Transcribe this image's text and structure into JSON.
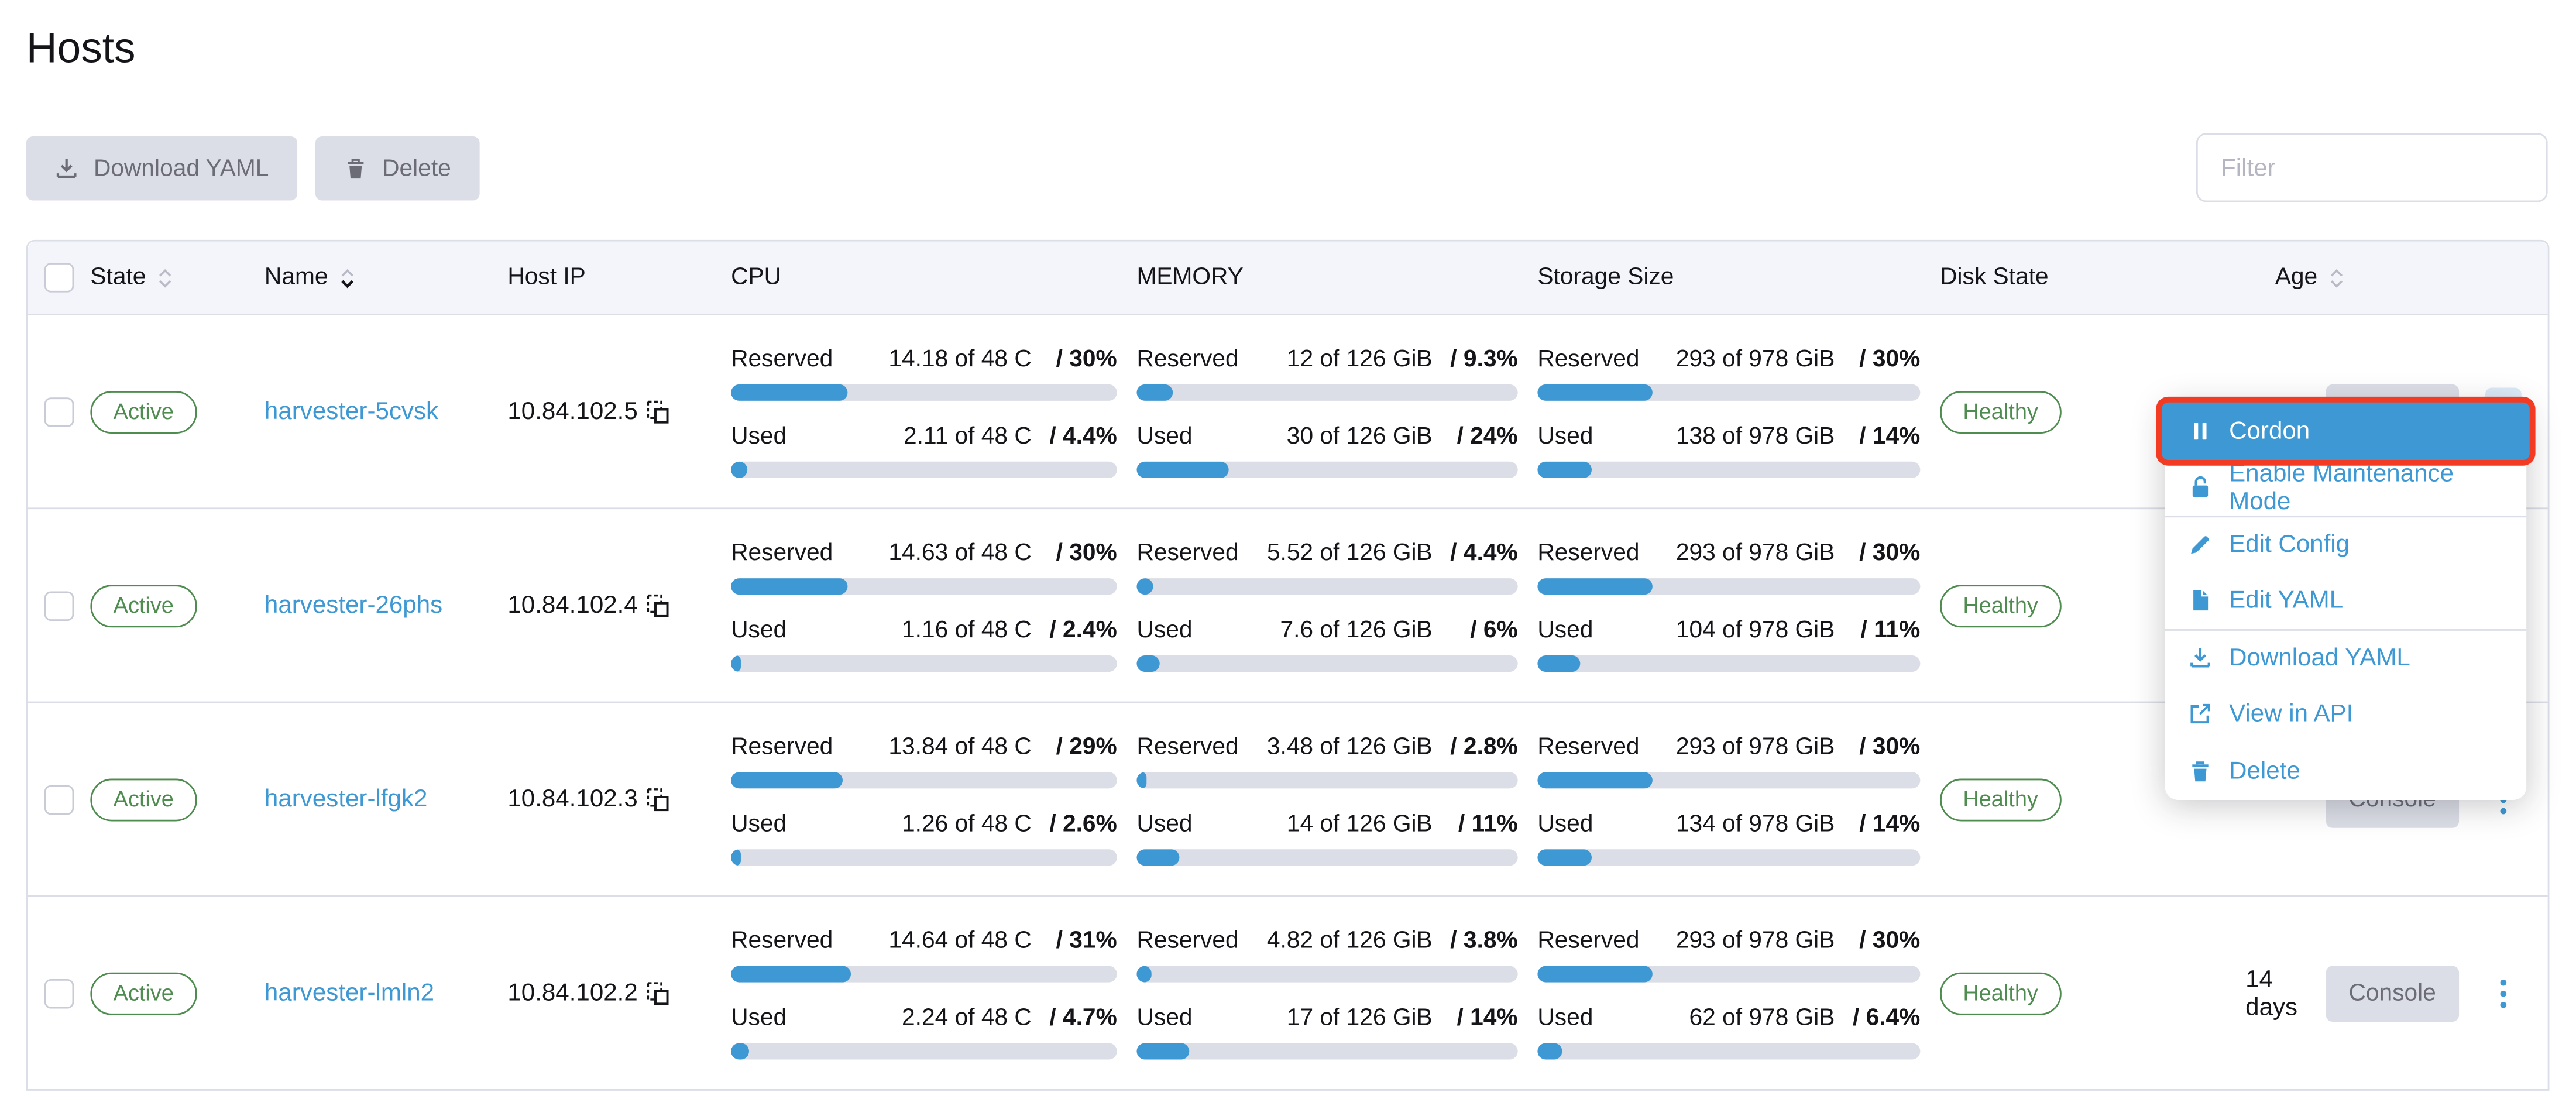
{
  "title": "Hosts",
  "colors": {
    "accent_blue": "#3d98d3",
    "success_green": "#4f8c4f",
    "highlight_outline_red": "#f23b22",
    "button_gray": "#dcdee7",
    "header_bg": "#f4f5fa"
  },
  "toolbar": {
    "download_yaml_label": "Download YAML",
    "delete_label": "Delete"
  },
  "filter": {
    "placeholder": "Filter"
  },
  "table": {
    "headers": {
      "state": "State",
      "name": "Name",
      "host_ip": "Host IP",
      "cpu": "CPU",
      "memory": "MEMORY",
      "storage": "Storage Size",
      "disk_state": "Disk State",
      "age": "Age"
    },
    "metric_labels": {
      "reserved": "Reserved",
      "used": "Used"
    },
    "rows": [
      {
        "state": "Active",
        "name": "harvester-5cvsk",
        "host_ip": "10.84.102.5",
        "cpu": {
          "reserved": {
            "value": "14.18 of 48 C",
            "percent_label": "/ 30%",
            "percent": 30
          },
          "used": {
            "value": "2.11 of 48 C",
            "percent_label": "/ 4.4%",
            "percent": 4.4
          }
        },
        "memory": {
          "reserved": {
            "value": "12 of 126 GiB",
            "percent_label": "/ 9.3%",
            "percent": 9.3
          },
          "used": {
            "value": "30 of 126 GiB",
            "percent_label": "/ 24%",
            "percent": 24
          }
        },
        "storage": {
          "reserved": {
            "value": "293 of 978 GiB",
            "percent_label": "/ 30%",
            "percent": 30
          },
          "used": {
            "value": "138 of 978 GiB",
            "percent_label": "/ 14%",
            "percent": 14
          }
        },
        "disk_state": "Healthy",
        "age": "",
        "console_label": "Console",
        "dots_active": true
      },
      {
        "state": "Active",
        "name": "harvester-26phs",
        "host_ip": "10.84.102.4",
        "cpu": {
          "reserved": {
            "value": "14.63 of 48 C",
            "percent_label": "/ 30%",
            "percent": 30
          },
          "used": {
            "value": "1.16 of 48 C",
            "percent_label": "/ 2.4%",
            "percent": 2.4
          }
        },
        "memory": {
          "reserved": {
            "value": "5.52 of 126 GiB",
            "percent_label": "/ 4.4%",
            "percent": 4.4
          },
          "used": {
            "value": "7.6 of 126 GiB",
            "percent_label": "/ 6%",
            "percent": 6
          }
        },
        "storage": {
          "reserved": {
            "value": "293 of 978 GiB",
            "percent_label": "/ 30%",
            "percent": 30
          },
          "used": {
            "value": "104 of 978 GiB",
            "percent_label": "/ 11%",
            "percent": 11
          }
        },
        "disk_state": "Healthy",
        "age": "",
        "console_label": "Console",
        "dots_active": false
      },
      {
        "state": "Active",
        "name": "harvester-lfgk2",
        "host_ip": "10.84.102.3",
        "cpu": {
          "reserved": {
            "value": "13.84 of 48 C",
            "percent_label": "/ 29%",
            "percent": 29
          },
          "used": {
            "value": "1.26 of 48 C",
            "percent_label": "/ 2.6%",
            "percent": 2.6
          }
        },
        "memory": {
          "reserved": {
            "value": "3.48 of 126 GiB",
            "percent_label": "/ 2.8%",
            "percent": 2.8
          },
          "used": {
            "value": "14 of 126 GiB",
            "percent_label": "/ 11%",
            "percent": 11
          }
        },
        "storage": {
          "reserved": {
            "value": "293 of 978 GiB",
            "percent_label": "/ 30%",
            "percent": 30
          },
          "used": {
            "value": "134 of 978 GiB",
            "percent_label": "/ 14%",
            "percent": 14
          }
        },
        "disk_state": "Healthy",
        "age": "",
        "console_label": "Console",
        "dots_active": false
      },
      {
        "state": "Active",
        "name": "harvester-lmln2",
        "host_ip": "10.84.102.2",
        "cpu": {
          "reserved": {
            "value": "14.64 of 48 C",
            "percent_label": "/ 31%",
            "percent": 31
          },
          "used": {
            "value": "2.24 of 48 C",
            "percent_label": "/ 4.7%",
            "percent": 4.7
          }
        },
        "memory": {
          "reserved": {
            "value": "4.82 of 126 GiB",
            "percent_label": "/ 3.8%",
            "percent": 3.8
          },
          "used": {
            "value": "17 of 126 GiB",
            "percent_label": "/ 14%",
            "percent": 14
          }
        },
        "storage": {
          "reserved": {
            "value": "293 of 978 GiB",
            "percent_label": "/ 30%",
            "percent": 30
          },
          "used": {
            "value": "62 of 978 GiB",
            "percent_label": "/ 6.4%",
            "percent": 6.4
          }
        },
        "disk_state": "Healthy",
        "age": "14 days",
        "console_label": "Console",
        "dots_active": false
      }
    ]
  },
  "context_menu": {
    "items": [
      {
        "label": "Cordon",
        "icon": "pause-icon",
        "highlighted": true,
        "divider_before": false
      },
      {
        "label": "Enable Maintenance Mode",
        "icon": "unlock-icon",
        "highlighted": false,
        "divider_before": false
      },
      {
        "label": "Edit Config",
        "icon": "pencil-icon",
        "highlighted": false,
        "divider_before": true
      },
      {
        "label": "Edit YAML",
        "icon": "file-icon",
        "highlighted": false,
        "divider_before": false
      },
      {
        "label": "Download YAML",
        "icon": "download-icon",
        "highlighted": false,
        "divider_before": true
      },
      {
        "label": "View in API",
        "icon": "external-link-icon",
        "highlighted": false,
        "divider_before": false
      },
      {
        "label": "Delete",
        "icon": "trash-icon",
        "highlighted": false,
        "divider_before": false
      }
    ]
  }
}
